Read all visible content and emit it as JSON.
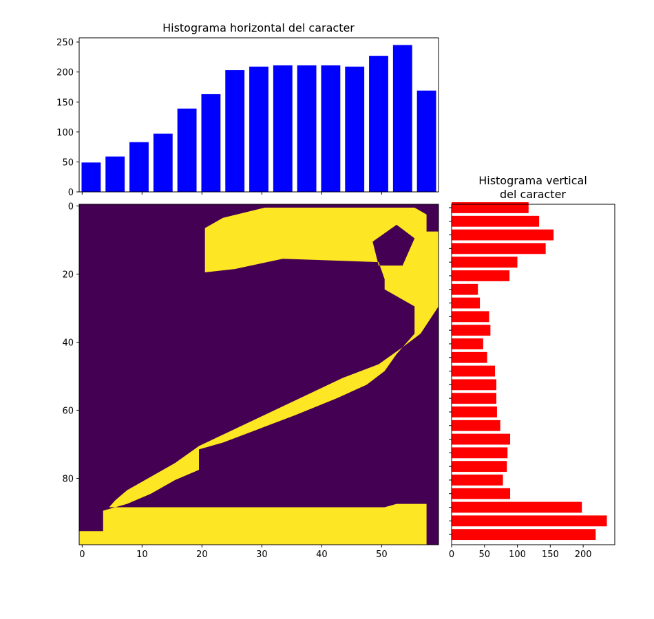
{
  "chart_data": [
    {
      "type": "bar",
      "title": "Histograma horizontal del caracter",
      "orientation": "vertical-bars",
      "color": "#0000ff",
      "x": [
        1.5,
        5.5,
        9.5,
        13.5,
        17.5,
        21.5,
        25.5,
        29.5,
        33.5,
        37.5,
        41.5,
        45.5,
        49.5,
        53.5,
        57.5
      ],
      "values": [
        49,
        59,
        83,
        97,
        139,
        163,
        203,
        209,
        211,
        211,
        211,
        209,
        227,
        245,
        169
      ],
      "xlim": [
        -0.5,
        59.5
      ],
      "ylim": [
        0,
        257
      ],
      "yticks": [
        0,
        50,
        100,
        150,
        200,
        250
      ],
      "xticks_labels_shown": false,
      "grid": false
    },
    {
      "type": "heatmap",
      "colormap": "viridis (two levels shown)",
      "low_color": "#440154",
      "high_color": "#fde725",
      "content": "digit 2 (binary character image)",
      "width": 60,
      "height": 100,
      "xticks": [
        0,
        10,
        20,
        30,
        40,
        50
      ],
      "yticks": [
        0,
        20,
        40,
        60,
        80
      ],
      "stroke_outline": [
        [
          21,
          7
        ],
        [
          24,
          4
        ],
        [
          31,
          1
        ],
        [
          56,
          1
        ],
        [
          58,
          3
        ],
        [
          58,
          8
        ],
        [
          60,
          8
        ],
        [
          60,
          30
        ],
        [
          57,
          38
        ],
        [
          54,
          42
        ],
        [
          50,
          47
        ],
        [
          44,
          51
        ],
        [
          38,
          56
        ],
        [
          32,
          61
        ],
        [
          26,
          66
        ],
        [
          20,
          71
        ],
        [
          16,
          76
        ],
        [
          12,
          80
        ],
        [
          8,
          84
        ],
        [
          6,
          87
        ],
        [
          5,
          89
        ],
        [
          51,
          89
        ],
        [
          53,
          88
        ],
        [
          58,
          88
        ],
        [
          58,
          100
        ],
        [
          0,
          100
        ],
        [
          0,
          96
        ],
        [
          4,
          96
        ],
        [
          4,
          90
        ],
        [
          8,
          88
        ],
        [
          12,
          85
        ],
        [
          16,
          81
        ],
        [
          20,
          78
        ],
        [
          20,
          72
        ],
        [
          24,
          70
        ],
        [
          30,
          66
        ],
        [
          36,
          62
        ],
        [
          43,
          57
        ],
        [
          48,
          53
        ],
        [
          51,
          49
        ],
        [
          53,
          44
        ],
        [
          56,
          38
        ],
        [
          56,
          30
        ],
        [
          51,
          25
        ],
        [
          51,
          22
        ],
        [
          50,
          17
        ],
        [
          34,
          16
        ],
        [
          26,
          19
        ],
        [
          21,
          20
        ],
        [
          21,
          13
        ]
      ],
      "stroke_gap": [
        [
          53,
          6
        ],
        [
          56,
          10
        ],
        [
          54,
          18
        ],
        [
          50,
          18
        ],
        [
          49,
          11
        ]
      ]
    },
    {
      "type": "bar",
      "title": "Histograma vertical\ndel caracter",
      "orientation": "horizontal-bars",
      "color": "#ff0000",
      "y": [
        0.5,
        4.5,
        8.5,
        12.5,
        16.5,
        20.5,
        24.5,
        28.5,
        32.5,
        36.5,
        40.5,
        44.5,
        48.5,
        52.5,
        56.5,
        60.5,
        64.5,
        68.5,
        72.5,
        76.5,
        80.5,
        84.5,
        88.5,
        92.5,
        96.5
      ],
      "values": [
        117,
        133,
        155,
        143,
        100,
        88,
        40,
        43,
        57,
        59,
        48,
        54,
        66,
        68,
        68,
        69,
        74,
        89,
        85,
        84,
        78,
        89,
        198,
        236,
        219
      ],
      "xlim": [
        0,
        248
      ],
      "ylim": [
        -0.5,
        99.5
      ],
      "xticks": [
        0,
        50,
        100,
        150,
        200
      ],
      "yticks_labels_shown": false,
      "grid": false
    }
  ]
}
